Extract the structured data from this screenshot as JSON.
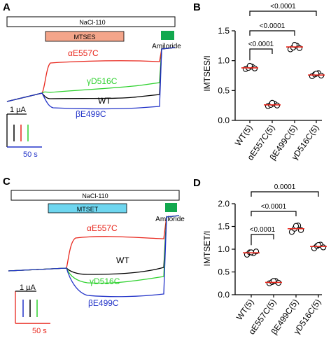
{
  "panels": {
    "A": {
      "letter": "A",
      "stimulus_label": "NaCl-110",
      "reagent_label": "MTSES",
      "amiloride_label": "Amiloride",
      "scale_current": "1 µA",
      "scale_time": "50 s",
      "trace_labels": [
        {
          "text": "αE557C",
          "color": "#e8261c"
        },
        {
          "text": "γD516C",
          "color": "#2ed12e"
        },
        {
          "text": "WT",
          "color": "#000000"
        },
        {
          "text": "βE499C",
          "color": "#2233c8"
        }
      ],
      "reagent_color": "#f4a58a",
      "amiloride_color": "#12a84e"
    },
    "C": {
      "letter": "C",
      "stimulus_label": "NaCl-110",
      "reagent_label": "MTSET",
      "amiloride_label": "Amiloride",
      "scale_current": "1 µA",
      "scale_time": "50 s",
      "trace_labels": [
        {
          "text": "αE557C",
          "color": "#e8261c"
        },
        {
          "text": "WT",
          "color": "#000000"
        },
        {
          "text": "γD516C",
          "color": "#2ed12e"
        },
        {
          "text": "βE499C",
          "color": "#2233c8"
        }
      ],
      "reagent_color": "#6ed6ef",
      "amiloride_color": "#12a84e"
    },
    "B": {
      "letter": "B"
    },
    "D": {
      "letter": "D"
    }
  },
  "chart_data": [
    {
      "panel": "B",
      "type": "scatter",
      "ylabel": "IMTSES/I",
      "ylim": [
        0.0,
        1.5
      ],
      "yticks": [
        "0.0",
        "0.5",
        "1.0",
        "1.5"
      ],
      "categories": [
        "WT(5)",
        "αE557C(5)",
        "βE499C(5)",
        "γD516C(5)"
      ],
      "means": [
        0.88,
        0.26,
        1.23,
        0.76
      ],
      "points": [
        [
          0.86,
          0.88,
          0.9,
          0.87,
          0.89
        ],
        [
          0.24,
          0.26,
          0.28,
          0.25,
          0.27
        ],
        [
          1.19,
          1.22,
          1.25,
          1.21,
          1.24
        ],
        [
          0.74,
          0.77,
          0.79,
          0.75,
          0.76
        ]
      ],
      "significance": [
        {
          "from": 0,
          "to": 1,
          "label": "<0.0001"
        },
        {
          "from": 0,
          "to": 2,
          "label": "<0.0001"
        },
        {
          "from": 0,
          "to": 3,
          "label": "<0.0001"
        }
      ],
      "mean_color": "#e8261c"
    },
    {
      "panel": "D",
      "type": "scatter",
      "ylabel": "IMTSET/I",
      "ylim": [
        0.0,
        2.0
      ],
      "yticks": [
        "0.0",
        "0.5",
        "1.0",
        "1.5",
        "2.0"
      ],
      "categories": [
        "WT(5)",
        "αE557C(5)",
        "βE499C(5)",
        "γD516C(5)"
      ],
      "means": [
        0.92,
        0.27,
        1.45,
        1.06
      ],
      "points": [
        [
          0.88,
          0.93,
          0.91,
          0.95,
          0.9
        ],
        [
          0.25,
          0.28,
          0.3,
          0.26,
          0.27
        ],
        [
          1.38,
          1.45,
          1.52,
          1.42,
          1.48
        ],
        [
          1.02,
          1.07,
          1.1,
          1.04,
          1.06
        ]
      ],
      "significance": [
        {
          "from": 0,
          "to": 1,
          "label": "<0.0001"
        },
        {
          "from": 0,
          "to": 2,
          "label": "<0.0001"
        },
        {
          "from": 0,
          "to": 3,
          "label": "0.0001"
        }
      ],
      "mean_color": "#e8261c"
    }
  ]
}
